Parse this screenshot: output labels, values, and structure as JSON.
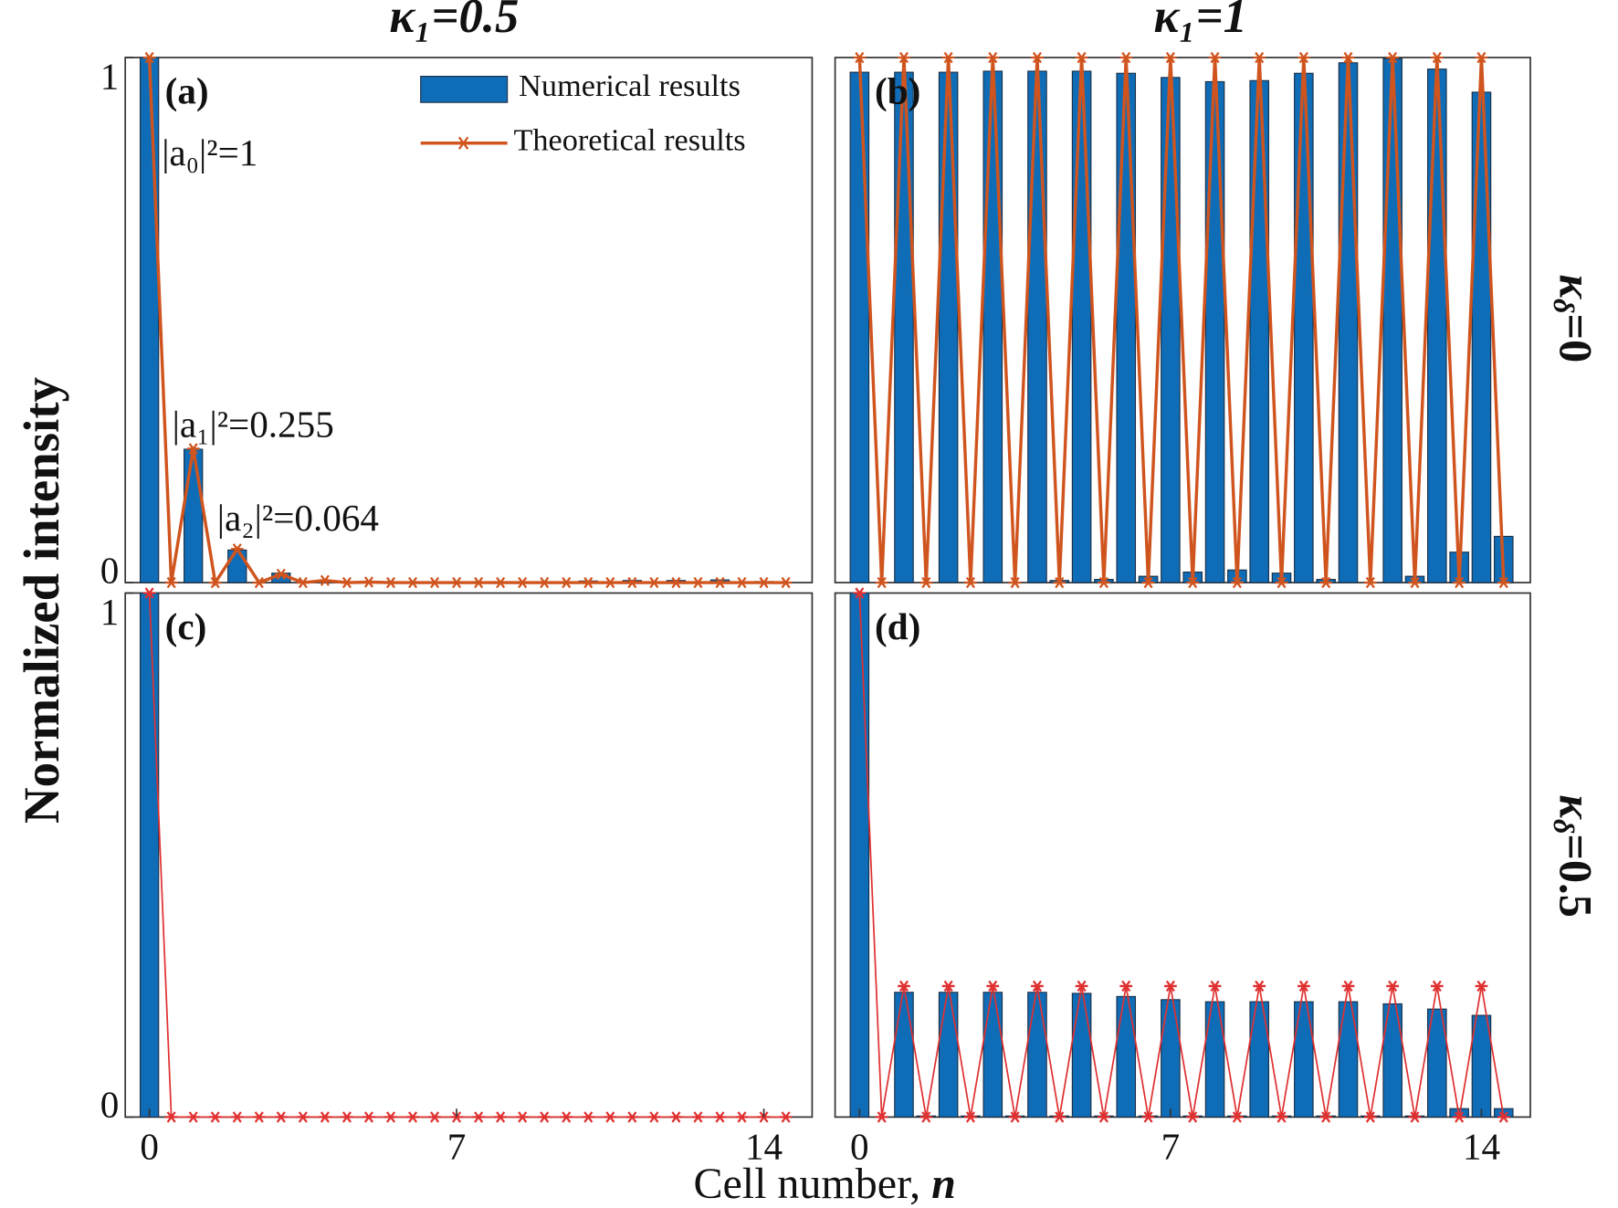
{
  "column_titles": [
    "κ₁=0.5",
    "κ₁=1"
  ],
  "row_labels": [
    {
      "symbol": "κ",
      "subscript": "δ",
      "rest": "=0"
    },
    {
      "symbol": "κ",
      "subscript": "δ",
      "rest": "=0.5"
    }
  ],
  "ylabel": "Normalized intensity",
  "xlabel": {
    "text": "Cell number, ",
    "var": "n"
  },
  "chart_data": [
    {
      "type": "bar",
      "panel_label": "(a)",
      "legend": "upper right",
      "annotations": [
        "|a₀|²=1",
        "|a₁|²=0.255",
        "|a₂|²=0.064"
      ],
      "x": [
        0,
        0.5,
        1,
        1.5,
        2,
        2.5,
        3,
        3.5,
        4,
        4.5,
        5,
        5.5,
        6,
        6.5,
        7,
        7.5,
        8,
        8.5,
        9,
        9.5,
        10,
        10.5,
        11,
        11.5,
        12,
        12.5,
        13,
        13.5,
        14,
        14.5
      ],
      "xlim": [
        -0.55,
        15.1
      ],
      "ylim": [
        0,
        1
      ],
      "yticks": [
        0,
        1
      ],
      "series": [
        {
          "name": "Numerical results",
          "color": "#0f6db8",
          "values": [
            1,
            0,
            0.254,
            0,
            0.062,
            0,
            0.018,
            0,
            0.004,
            0,
            0.002,
            0,
            0.001,
            0,
            0.001,
            0,
            0.001,
            0,
            0.001,
            0,
            0.003,
            0,
            0.004,
            0,
            0.004,
            0,
            0.005,
            0,
            0.002,
            0
          ]
        },
        {
          "name": "Theoretical results",
          "type": "line",
          "color": "#d0541e",
          "values": [
            1,
            0,
            0.255,
            0,
            0.064,
            0,
            0.016,
            0,
            0.004,
            0,
            0.001,
            0,
            0,
            0,
            0,
            0,
            0,
            0,
            0,
            0,
            0,
            0,
            0,
            0,
            0,
            0,
            0,
            0,
            0,
            0
          ]
        }
      ]
    },
    {
      "type": "bar",
      "panel_label": "(b)",
      "x": [
        0,
        0.5,
        1,
        1.5,
        2,
        2.5,
        3,
        3.5,
        4,
        4.5,
        5,
        5.5,
        6,
        6.5,
        7,
        7.5,
        8,
        8.5,
        9,
        9.5,
        10,
        10.5,
        11,
        11.5,
        12,
        12.5,
        13,
        13.5,
        14,
        14.5
      ],
      "xlim": [
        -0.55,
        15.1
      ],
      "ylim": [
        0,
        1
      ],
      "series": [
        {
          "color": "#0f6db8",
          "values": [
            0.972,
            0,
            0.972,
            0,
            0.972,
            0,
            0.974,
            0,
            0.974,
            0.004,
            0.974,
            0.006,
            0.97,
            0.012,
            0.962,
            0.02,
            0.954,
            0.024,
            0.956,
            0.018,
            0.97,
            0.006,
            0.99,
            0,
            0.998,
            0.012,
            0.978,
            0.058,
            0.934,
            0.088
          ]
        },
        {
          "type": "line",
          "color": "#d0541e",
          "values": [
            1,
            0,
            1,
            0,
            1,
            0,
            1,
            0,
            1,
            0,
            1,
            0,
            1,
            0,
            1,
            0,
            1,
            0,
            1,
            0,
            1,
            0,
            1,
            0,
            1,
            0,
            1,
            0,
            1,
            0
          ]
        }
      ]
    },
    {
      "type": "bar",
      "panel_label": "(c)",
      "x": [
        0,
        0.5,
        1,
        1.5,
        2,
        2.5,
        3,
        3.5,
        4,
        4.5,
        5,
        5.5,
        6,
        6.5,
        7,
        7.5,
        8,
        8.5,
        9,
        9.5,
        10,
        10.5,
        11,
        11.5,
        12,
        12.5,
        13,
        13.5,
        14,
        14.5
      ],
      "xlim": [
        -0.55,
        15.1
      ],
      "ylim": [
        0,
        1
      ],
      "yticks": [
        0,
        1
      ],
      "xticks": [
        0,
        7,
        14
      ],
      "series": [
        {
          "color": "#0f6db8",
          "values": [
            1,
            0,
            0,
            0,
            0,
            0,
            0,
            0,
            0,
            0,
            0,
            0,
            0,
            0,
            0,
            0,
            0,
            0,
            0,
            0,
            0,
            0,
            0,
            0,
            0,
            0,
            0,
            0,
            0,
            0
          ]
        },
        {
          "type": "line",
          "color": "#e03030",
          "values": [
            1,
            0,
            0,
            0,
            0,
            0,
            0,
            0,
            0,
            0,
            0,
            0,
            0,
            0,
            0,
            0,
            0,
            0,
            0,
            0,
            0,
            0,
            0,
            0,
            0,
            0,
            0,
            0,
            0,
            0
          ]
        }
      ]
    },
    {
      "type": "bar",
      "panel_label": "(d)",
      "x": [
        0,
        0.5,
        1,
        1.5,
        2,
        2.5,
        3,
        3.5,
        4,
        4.5,
        5,
        5.5,
        6,
        6.5,
        7,
        7.5,
        8,
        8.5,
        9,
        9.5,
        10,
        10.5,
        11,
        11.5,
        12,
        12.5,
        13,
        13.5,
        14,
        14.5
      ],
      "xlim": [
        -0.55,
        15.1
      ],
      "ylim": [
        0,
        1
      ],
      "xticks": [
        0,
        7,
        14
      ],
      "series": [
        {
          "color": "#0f6db8",
          "values": [
            1,
            0,
            0.238,
            0.002,
            0.238,
            0.002,
            0.238,
            0.002,
            0.238,
            0.002,
            0.236,
            0.002,
            0.23,
            0.002,
            0.224,
            0.002,
            0.22,
            0.002,
            0.22,
            0.002,
            0.22,
            0.002,
            0.22,
            0.002,
            0.216,
            0.002,
            0.206,
            0.016,
            0.194,
            0.016
          ]
        },
        {
          "type": "line",
          "color": "#e03030",
          "values": [
            1,
            0,
            0.25,
            0,
            0.25,
            0,
            0.25,
            0,
            0.25,
            0,
            0.25,
            0,
            0.25,
            0,
            0.25,
            0,
            0.25,
            0,
            0.25,
            0,
            0.25,
            0,
            0.25,
            0,
            0.25,
            0,
            0.25,
            0,
            0.25,
            0
          ]
        }
      ]
    }
  ]
}
